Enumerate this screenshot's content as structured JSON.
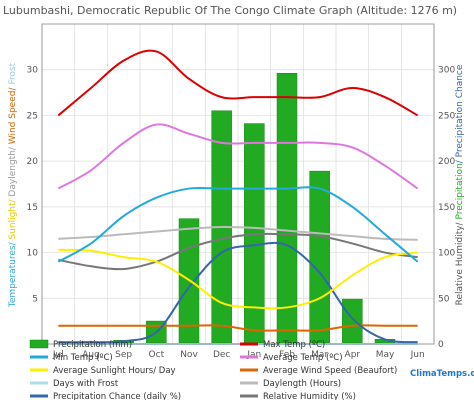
{
  "chart_data": {
    "type": "bar+line",
    "title": "Lubumbashi, Democratic Republic Of The Congo Climate Graph (Altitude: 1276 m)",
    "categories": [
      "Jul",
      "Aug",
      "Sep",
      "Oct",
      "Nov",
      "Dec",
      "Jan",
      "Feb",
      "Mar",
      "Apr",
      "May",
      "Jun"
    ],
    "left_axis": {
      "label_parts": [
        {
          "text": "Temperatures/ ",
          "color": "#33aadd"
        },
        {
          "text": "Sunlight/ ",
          "color": "#e8c800"
        },
        {
          "text": "Daylength/ ",
          "color": "#999999"
        },
        {
          "text": "Wind Speed/ ",
          "color": "#cc6600"
        },
        {
          "text": "Frost",
          "color": "#99ccee"
        }
      ],
      "ylim": [
        0,
        35
      ],
      "ticks": [
        "0",
        "5",
        "10",
        "15",
        "20",
        "25",
        "30"
      ]
    },
    "right_axis": {
      "label_parts": [
        {
          "text": "Relative Humidity/ ",
          "color": "#555555"
        },
        {
          "text": "Precipitation",
          "color": "#22aa22"
        },
        {
          "text": "/ Precipitation Chance",
          "color": "#3366aa"
        }
      ],
      "ylim": [
        0,
        350
      ],
      "ticks": [
        "0",
        "50",
        "100",
        "150",
        "200",
        "250",
        "300"
      ]
    },
    "series": [
      {
        "name": "Precipitation (mm)",
        "kind": "bar",
        "axis": "right",
        "color": "#22aa22",
        "values": [
          0,
          0,
          3,
          24,
          136,
          254,
          240,
          295,
          188,
          48,
          4,
          0
        ]
      },
      {
        "name": "Max Temp (ºC)",
        "kind": "line",
        "axis": "left",
        "color": "#dd0000",
        "values": [
          25,
          28,
          31,
          32,
          29,
          27,
          27,
          27,
          27,
          28,
          27,
          25
        ]
      },
      {
        "name": "Min Temp (ºC)",
        "kind": "line",
        "axis": "left",
        "color": "#22aadd",
        "values": [
          9,
          11,
          14,
          16,
          17,
          17,
          17,
          17,
          17,
          15,
          12,
          9
        ]
      },
      {
        "name": "Average Temp (ºC)",
        "kind": "line",
        "axis": "left",
        "color": "#dd77dd",
        "values": [
          17,
          19,
          22,
          24,
          23,
          22,
          22,
          22,
          22,
          21.5,
          19.5,
          17
        ]
      },
      {
        "name": "Average Sunlight Hours/ Day",
        "kind": "line",
        "axis": "left",
        "color": "#ffee00",
        "values": [
          10.3,
          10.2,
          9.5,
          9,
          7,
          4.5,
          4,
          4,
          5,
          7.5,
          9.5,
          10
        ]
      },
      {
        "name": "Average Wind Speed (Beaufort)",
        "kind": "line",
        "axis": "left",
        "color": "#dd6600",
        "values": [
          2,
          2,
          2,
          2,
          2,
          2,
          1.5,
          1.5,
          1.5,
          2,
          2,
          2
        ]
      },
      {
        "name": "Days with Frost",
        "kind": "line",
        "axis": "left",
        "color": "#aaddee",
        "values": [
          0,
          0,
          0,
          0,
          0,
          0,
          0,
          0,
          0,
          0,
          0,
          0
        ]
      },
      {
        "name": "Daylength (Hours)",
        "kind": "line",
        "axis": "left",
        "color": "#bbbbbb",
        "values": [
          11.5,
          11.7,
          12,
          12.3,
          12.6,
          12.8,
          12.7,
          12.4,
          12.1,
          11.8,
          11.5,
          11.4
        ]
      },
      {
        "name": "Precipitation Chance (daily %)",
        "kind": "line",
        "axis": "right",
        "color": "#3366aa",
        "values": [
          2,
          2,
          3,
          13,
          62,
          100,
          108,
          108,
          78,
          28,
          5,
          2
        ]
      },
      {
        "name": "Relative Humidity (%)",
        "kind": "line",
        "axis": "right",
        "color": "#777777",
        "values": [
          92,
          85,
          82,
          90,
          105,
          115,
          120,
          120,
          118,
          110,
          100,
          95
        ]
      }
    ],
    "grid": true,
    "legend_position": "bottom"
  },
  "branding": "ClimaTemps.com"
}
